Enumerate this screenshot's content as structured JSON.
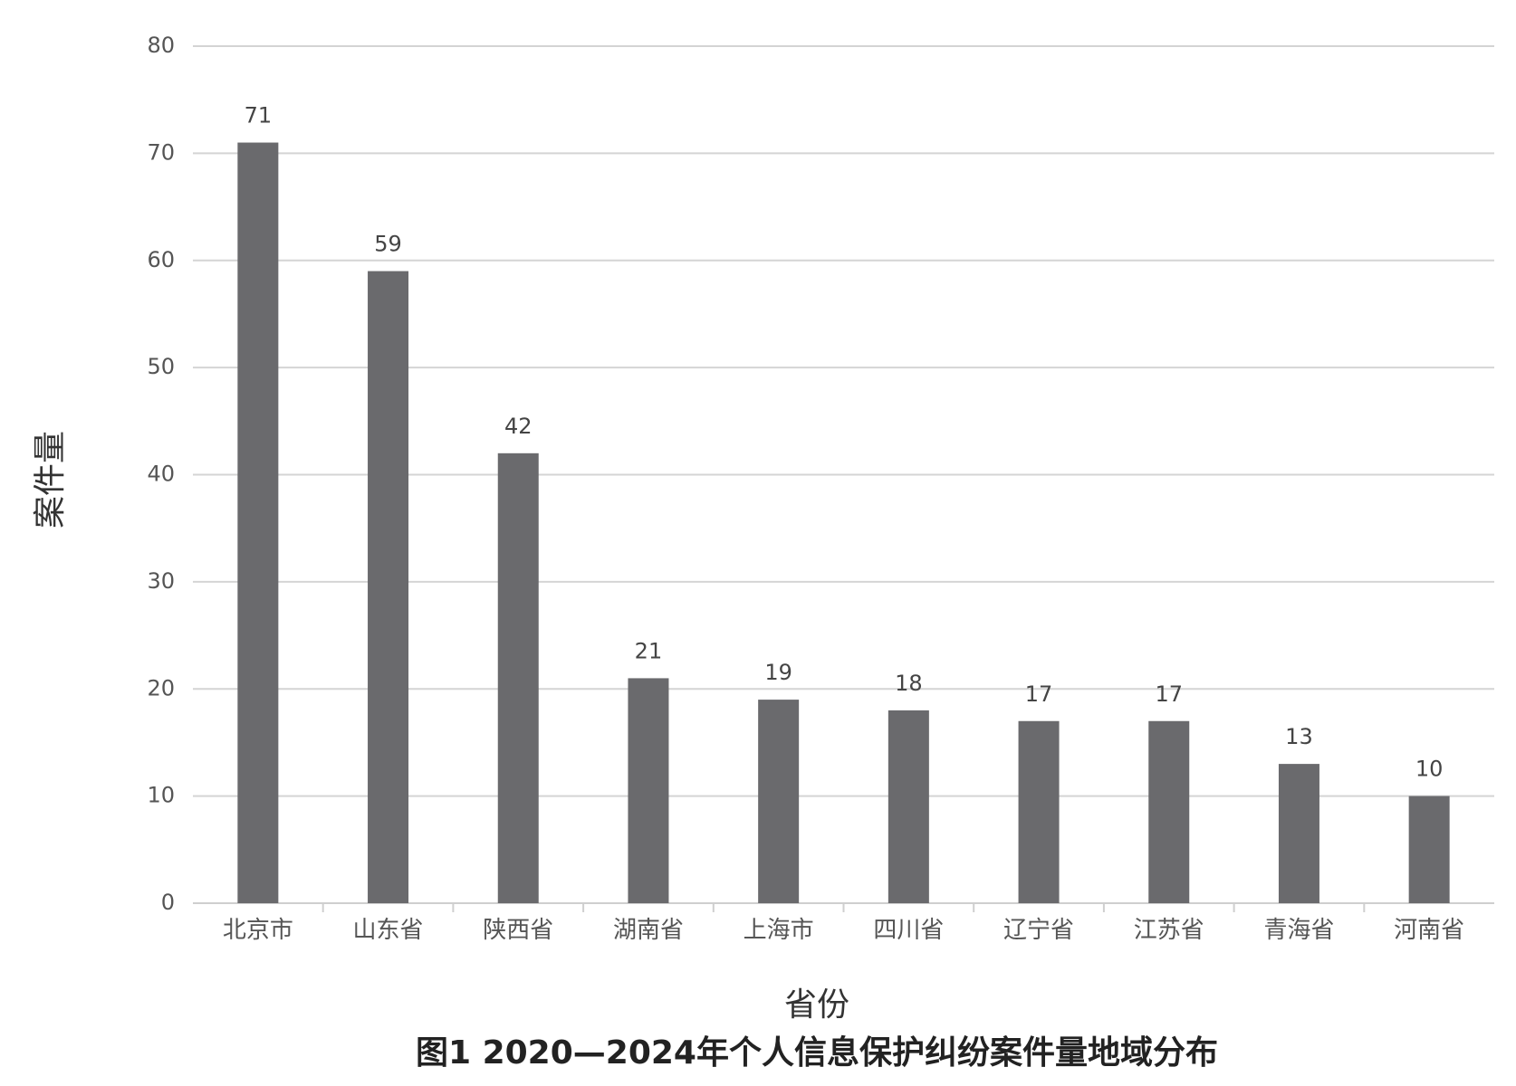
{
  "chart_data": {
    "type": "bar",
    "title": "图1 2020—2024年个人信息保护纠纷案件量地域分布",
    "xlabel": "省份",
    "ylabel": "案件量",
    "categories": [
      "北京市",
      "山东省",
      "陕西省",
      "湖南省",
      "上海市",
      "四川省",
      "辽宁省",
      "江苏省",
      "青海省",
      "河南省"
    ],
    "values": [
      71,
      59,
      42,
      21,
      19,
      18,
      17,
      17,
      13,
      10
    ],
    "ylim": [
      0,
      80
    ],
    "yticks": [
      0,
      10,
      20,
      30,
      40,
      50,
      60,
      70,
      80
    ],
    "grid": true,
    "legend": "none",
    "bar_color": "#6a6a6d"
  }
}
